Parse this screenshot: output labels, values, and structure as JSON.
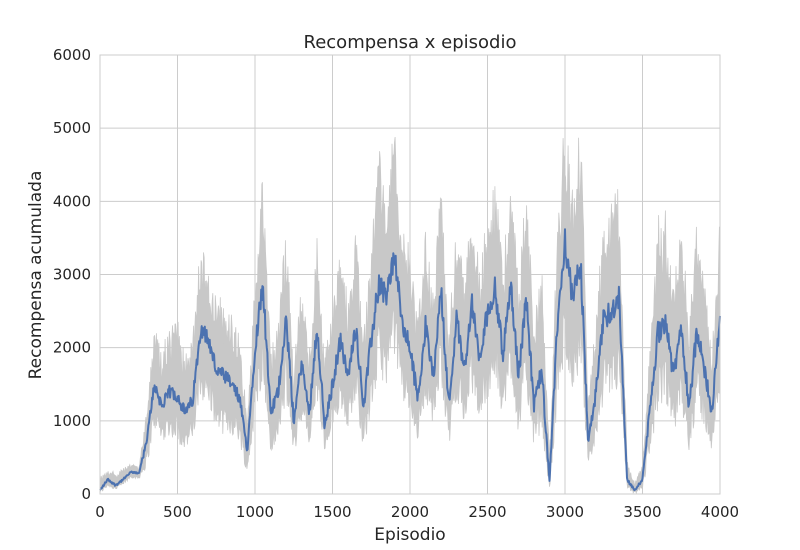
{
  "chart_data": {
    "type": "line",
    "title": "Recompensa x episodio",
    "xlabel": "Episodio",
    "ylabel": "Recompensa acumulada",
    "xlim": [
      0,
      4000
    ],
    "ylim": [
      0,
      6000
    ],
    "xticks": [
      0,
      500,
      1000,
      1500,
      2000,
      2500,
      3000,
      3500,
      4000
    ],
    "yticks": [
      0,
      1000,
      2000,
      3000,
      4000,
      5000,
      6000
    ],
    "grid": true,
    "legend": "none",
    "colors": {
      "mean": "#4c72b0",
      "band": "#c8c8c8",
      "grid": "#cccccc",
      "frame": "#cccccc"
    },
    "series": [
      {
        "x": [
          0,
          50,
          100,
          150,
          200,
          250,
          300,
          350,
          400,
          450,
          500,
          550,
          600,
          650,
          700,
          750,
          800,
          850,
          900,
          950,
          1000,
          1050,
          1100,
          1150,
          1200,
          1250,
          1300,
          1350,
          1400,
          1450,
          1500,
          1550,
          1600,
          1650,
          1700,
          1750,
          1800,
          1850,
          1900,
          1950,
          2000,
          2050,
          2100,
          2150,
          2200,
          2250,
          2300,
          2350,
          2400,
          2450,
          2500,
          2550,
          2600,
          2650,
          2700,
          2750,
          2800,
          2850,
          2900,
          2950,
          3000,
          3050,
          3100,
          3150,
          3200,
          3250,
          3300,
          3350,
          3400,
          3450,
          3500,
          3550,
          3600,
          3650,
          3700,
          3750,
          3800,
          3850,
          3900,
          3950,
          4000
        ],
        "values": [
          50,
          200,
          120,
          200,
          300,
          280,
          700,
          1500,
          1200,
          1400,
          1350,
          1100,
          1300,
          2300,
          2100,
          1700,
          1600,
          1500,
          1300,
          600,
          2000,
          2900,
          1100,
          1400,
          2400,
          1000,
          1800,
          1100,
          2300,
          900,
          1500,
          2100,
          1600,
          2300,
          1200,
          2100,
          2900,
          2700,
          3300,
          2300,
          2000,
          1300,
          2300,
          1600,
          2800,
          1200,
          2400,
          1700,
          2600,
          1800,
          2500,
          2800,
          1900,
          2900,
          1600,
          2700,
          1200,
          1700,
          150,
          2300,
          3500,
          2600,
          3200,
          700,
          1400,
          2400,
          2500,
          2700,
          200,
          50,
          200,
          1200,
          2200,
          2400,
          1600,
          2300,
          1200,
          2200,
          1700,
          1100,
          2500
        ],
        "band_upper": [
          250,
          330,
          300,
          350,
          420,
          380,
          1200,
          2300,
          2000,
          2300,
          2400,
          1900,
          2200,
          3500,
          3000,
          2800,
          2600,
          2500,
          2200,
          1000,
          3000,
          4400,
          2000,
          2300,
          3800,
          1800,
          2900,
          2000,
          3500,
          1900,
          2600,
          3300,
          2700,
          3600,
          2200,
          3500,
          4800,
          4200,
          5100,
          3600,
          3400,
          2400,
          3700,
          2800,
          4300,
          2300,
          3800,
          2900,
          4000,
          3100,
          3900,
          4400,
          3100,
          4500,
          2900,
          4300,
          2400,
          3100,
          500,
          3700,
          5300,
          4200,
          5200,
          1300,
          2500,
          3900,
          4100,
          4300,
          500,
          150,
          450,
          2100,
          3800,
          4000,
          2900,
          3900,
          2300,
          3800,
          3000,
          2000,
          4000
        ],
        "band_lower": [
          0,
          100,
          50,
          120,
          220,
          200,
          350,
          900,
          700,
          800,
          700,
          600,
          700,
          1300,
          1200,
          900,
          800,
          800,
          700,
          250,
          1000,
          1600,
          500,
          700,
          1300,
          500,
          1000,
          600,
          1300,
          450,
          800,
          1200,
          900,
          1300,
          600,
          1100,
          1600,
          1500,
          1900,
          1300,
          1100,
          700,
          1300,
          900,
          1600,
          600,
          1300,
          900,
          1400,
          950,
          1300,
          1500,
          1000,
          1600,
          800,
          1400,
          600,
          900,
          20,
          1200,
          1900,
          1400,
          1700,
          300,
          700,
          1300,
          1300,
          1400,
          50,
          0,
          50,
          600,
          1100,
          1200,
          800,
          1200,
          600,
          1100,
          900,
          550,
          1300
        ]
      }
    ]
  }
}
